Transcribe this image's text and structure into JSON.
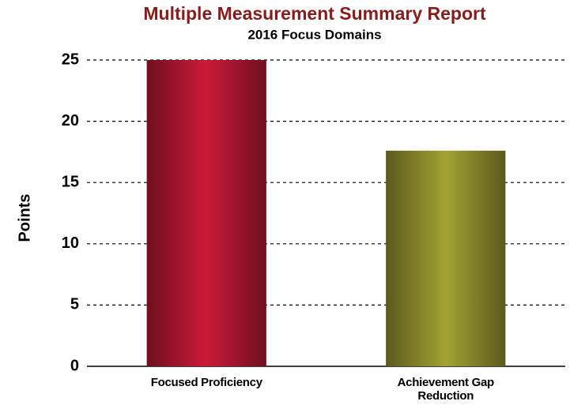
{
  "chart_data": {
    "type": "bar",
    "title": "Multiple Measurement Summary Report",
    "subtitle": "2016 Focus Domains",
    "y_label": "Points",
    "categories": [
      "Focused Proficiency",
      "Achievement Gap Reduction"
    ],
    "values": [
      25,
      17.6
    ],
    "colors": [
      "#cc1a38",
      "#a3a334"
    ],
    "ylim": [
      0,
      25
    ],
    "yticks": [
      0,
      5,
      10,
      15,
      20,
      25
    ],
    "grid": true
  }
}
